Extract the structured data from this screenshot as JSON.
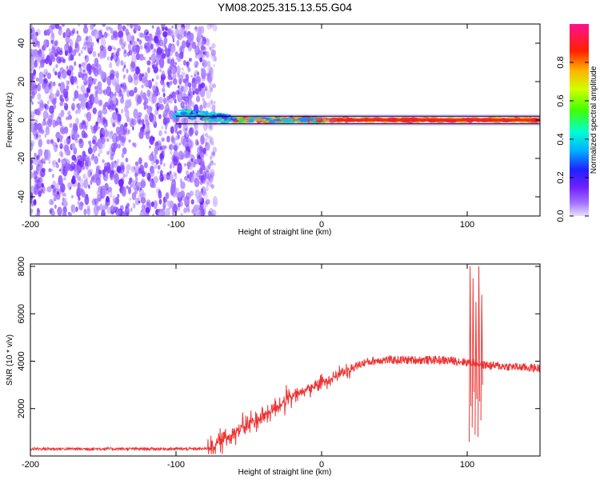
{
  "title": "YM08.2025.315.13.55.G04",
  "chart_data": [
    {
      "type": "heatmap",
      "name": "spectrogram",
      "xlabel": "Height of straight line (km)",
      "ylabel": "Frequency (Hz)",
      "xlim": [
        -200,
        150
      ],
      "ylim": [
        -50,
        50
      ],
      "xticks": [
        "-200",
        "-100",
        "0",
        "100"
      ],
      "xtick_values": [
        -200,
        -100,
        0,
        100
      ],
      "yticks": [
        "-40",
        "-20",
        "0",
        "20",
        "40"
      ],
      "ytick_values": [
        -40,
        -20,
        0,
        20,
        40
      ],
      "noise_region_km": [
        -200,
        -75
      ],
      "signal_frequency_hz": 0,
      "signal_start_km": -100,
      "reference_lines_hz": [
        2,
        -2
      ],
      "colorbar": {
        "label": "Normalized spectral amplitude",
        "range": [
          0,
          1
        ],
        "ticks": [
          "0.0",
          "0.2",
          "0.4",
          "0.6",
          "0.8"
        ],
        "tick_values": [
          0.0,
          0.2,
          0.4,
          0.6,
          0.8
        ]
      }
    },
    {
      "type": "line",
      "name": "snr",
      "xlabel": "Height of straight line (km)",
      "ylabel": "SNR (10 * v/v)",
      "xlim": [
        -200,
        150
      ],
      "ylim": [
        0,
        8100
      ],
      "xticks": [
        "-200",
        "-100",
        "0",
        "100"
      ],
      "xtick_values": [
        -200,
        -100,
        0,
        100
      ],
      "yticks": [
        "2000",
        "4000",
        "6000",
        "8000"
      ],
      "ytick_values": [
        2000,
        4000,
        6000,
        8000
      ],
      "color": "#ee3333",
      "profile": {
        "x": [
          -200,
          -80,
          -75,
          -60,
          -40,
          -20,
          0,
          10,
          20,
          30,
          40,
          60,
          80,
          95,
          100,
          105,
          110,
          120,
          150
        ],
        "y": [
          300,
          300,
          400,
          1000,
          1700,
          2500,
          3100,
          3400,
          3700,
          3950,
          4050,
          4050,
          4050,
          4000,
          3950,
          3950,
          3850,
          3800,
          3700
        ]
      },
      "spikes": [
        {
          "x": 102,
          "lo": 600,
          "hi": 8000
        },
        {
          "x": 104,
          "lo": 1200,
          "hi": 7500
        },
        {
          "x": 106,
          "lo": 900,
          "hi": 6500
        },
        {
          "x": 108,
          "lo": 800,
          "hi": 8000
        },
        {
          "x": 110,
          "lo": 1500,
          "hi": 6800
        }
      ]
    }
  ]
}
